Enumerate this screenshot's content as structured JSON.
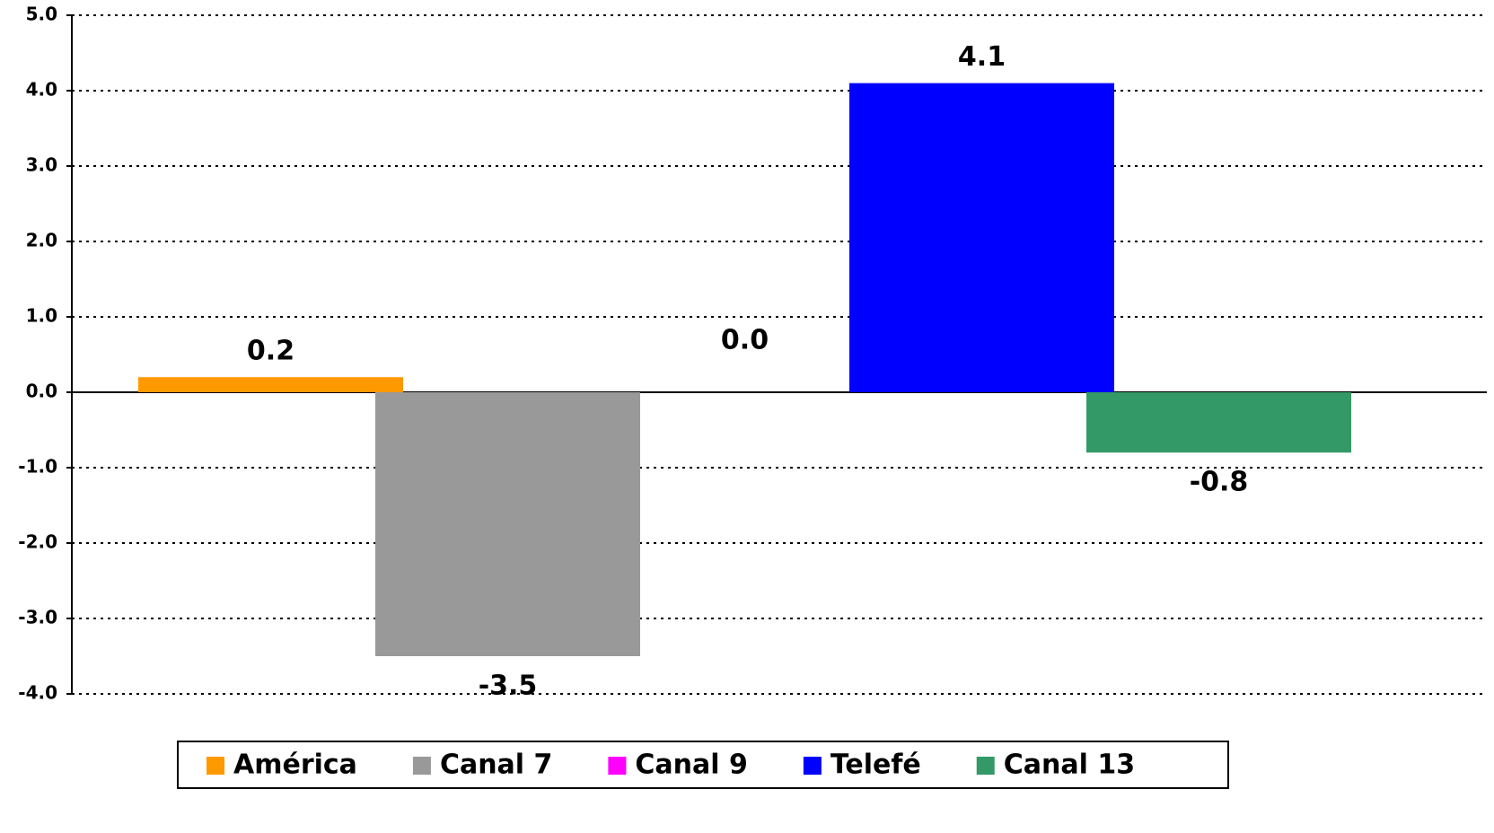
{
  "chart_data": {
    "type": "bar",
    "series": [
      {
        "name": "América",
        "color": "#ff9900",
        "values": [
          0.2
        ],
        "value_labels": [
          "0.2"
        ]
      },
      {
        "name": "Canal 7",
        "color": "#999999",
        "values": [
          -3.5
        ],
        "value_labels": [
          "-3.5"
        ]
      },
      {
        "name": "Canal 9",
        "color": "#ff00ff",
        "values": [
          0.0
        ],
        "value_labels": [
          "0.0"
        ]
      },
      {
        "name": "Telefé",
        "color": "#0000ff",
        "values": [
          4.1
        ],
        "value_labels": [
          "4.1"
        ]
      },
      {
        "name": "Canal 13",
        "color": "#339966",
        "values": [
          -0.8
        ],
        "value_labels": [
          "-0.8"
        ]
      }
    ],
    "ylim": [
      -4,
      5
    ],
    "yticks": [
      {
        "value": -4,
        "label": "-4.0"
      },
      {
        "value": -3,
        "label": "-3.0"
      },
      {
        "value": -2,
        "label": "-2.0"
      },
      {
        "value": -1,
        "label": "-1.0"
      },
      {
        "value": 0,
        "label": "0.0"
      },
      {
        "value": 1,
        "label": "1.0"
      },
      {
        "value": 2,
        "label": "2.0"
      },
      {
        "value": 3,
        "label": "3.0"
      },
      {
        "value": 4,
        "label": "4.0"
      },
      {
        "value": 5,
        "label": "5.0"
      }
    ],
    "grid": true,
    "legend": "bottom"
  }
}
